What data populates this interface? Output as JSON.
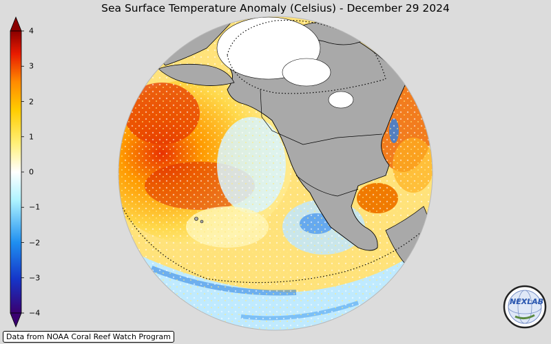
{
  "title": "Sea Surface Temperature Anomaly (Celsius) - December 29 2024",
  "colorbar": {
    "ticks": [
      "4",
      "3",
      "2",
      "1",
      "0",
      "−1",
      "−2",
      "−3",
      "−4"
    ],
    "min": -4,
    "max": 4,
    "colors": [
      "#3a0070",
      "#1535c8",
      "#1f8ff0",
      "#aef3ff",
      "#ffffff",
      "#fff07a",
      "#ffcc00",
      "#ff8a00",
      "#e81a00",
      "#8a0000"
    ]
  },
  "map": {
    "projection": "orthographic",
    "ocean_warm": "#ffd24a",
    "ocean_cool": "#cfefff",
    "land": "#a9a9a9"
  },
  "credit": "Data from NOAA Coral Reef Watch Program",
  "logo": {
    "text": "NEXLAB",
    "icon": "globe-logo-icon"
  }
}
